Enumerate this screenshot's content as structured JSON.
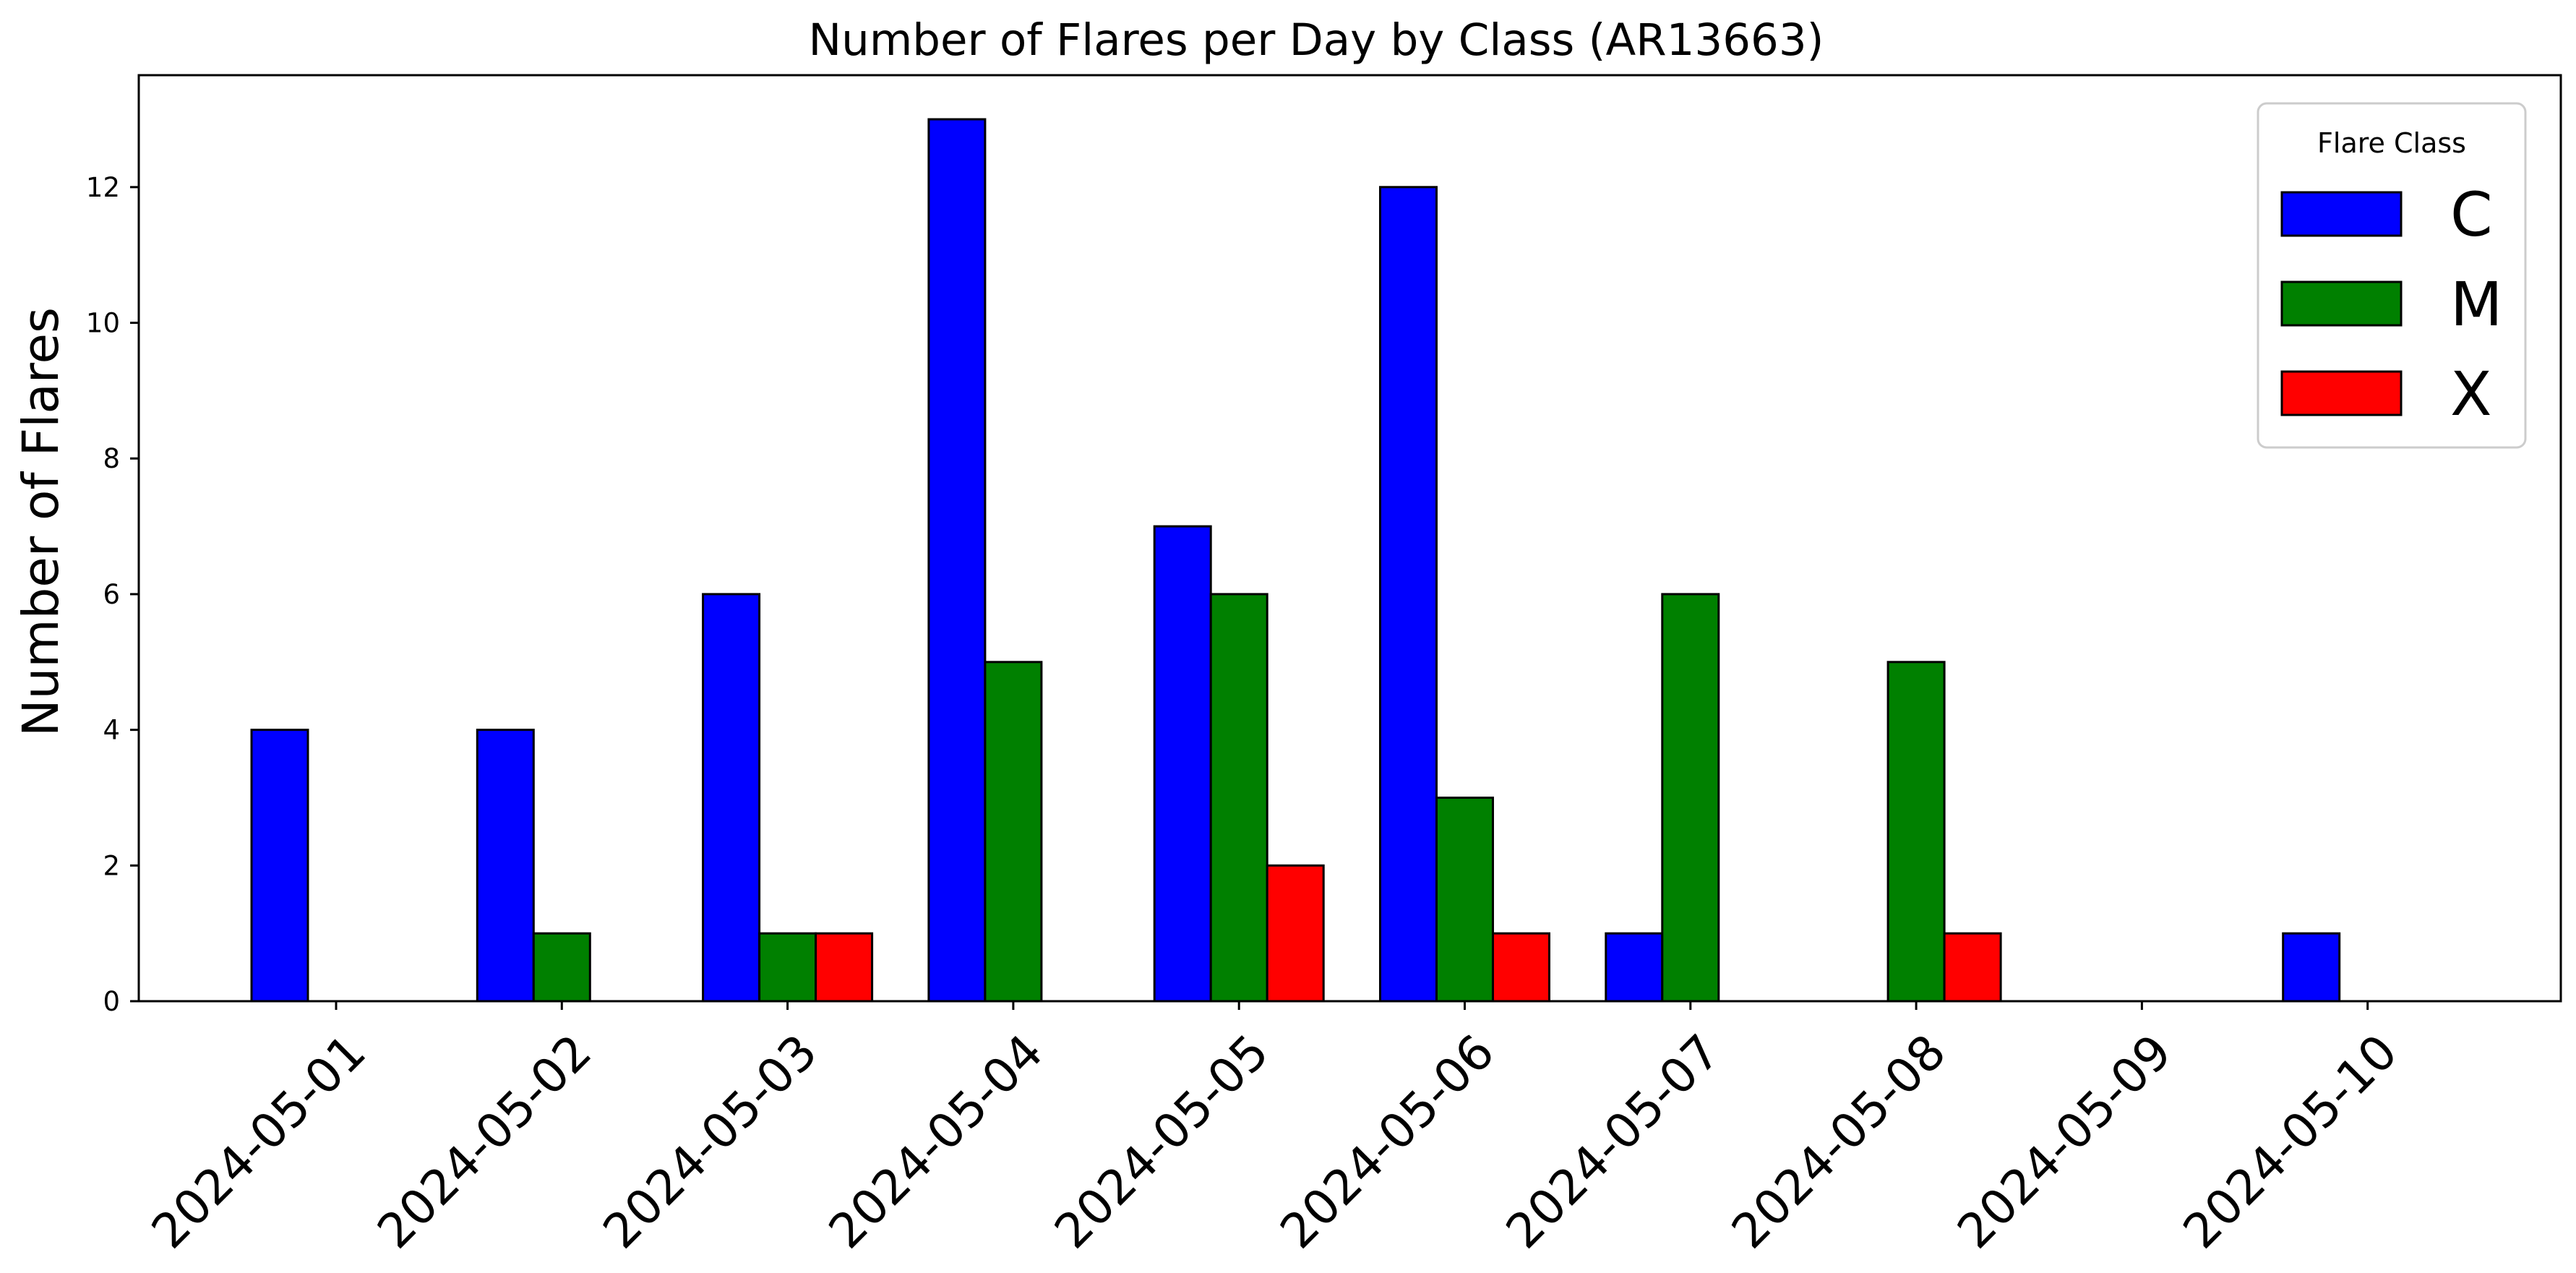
{
  "chart_data": {
    "type": "bar",
    "title": "Number of Flares per Day by Class (AR13663)",
    "xlabel": "",
    "ylabel": "Number of Flares",
    "categories": [
      "2024-05-01",
      "2024-05-02",
      "2024-05-03",
      "2024-05-04",
      "2024-05-05",
      "2024-05-06",
      "2024-05-07",
      "2024-05-08",
      "2024-05-09",
      "2024-05-10"
    ],
    "series": [
      {
        "name": "C",
        "color": "#0000ff",
        "values": [
          4,
          4,
          6,
          13,
          7,
          12,
          1,
          0,
          0,
          1
        ]
      },
      {
        "name": "M",
        "color": "#008000",
        "values": [
          0,
          1,
          1,
          5,
          6,
          3,
          6,
          5,
          0,
          0
        ]
      },
      {
        "name": "X",
        "color": "#ff0000",
        "values": [
          0,
          0,
          1,
          0,
          2,
          1,
          0,
          1,
          0,
          0
        ]
      }
    ],
    "ylim": [
      0,
      13.65
    ],
    "yticks": [
      0,
      2,
      4,
      6,
      8,
      10,
      12
    ],
    "grid": false,
    "legend": {
      "title": "Flare Class",
      "position": "top-right"
    }
  }
}
